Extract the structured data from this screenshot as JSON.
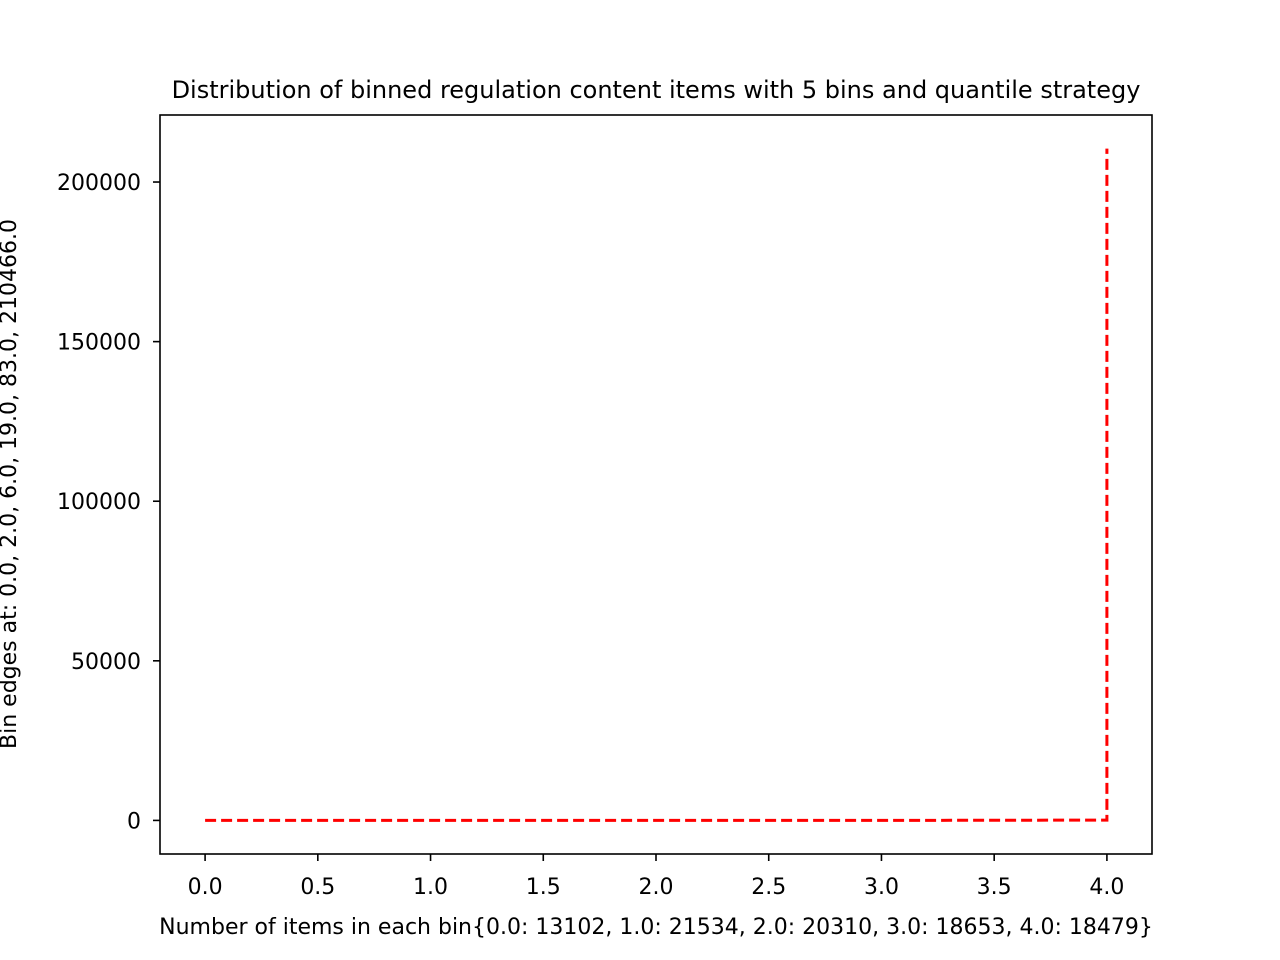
{
  "chart_data": {
    "type": "line",
    "title": "Distribution of binned regulation content items with 5 bins and quantile strategy",
    "xlabel": "Number of items in each bin{0.0: 13102, 1.0: 21534, 2.0: 20310, 3.0: 18653, 4.0: 18479}",
    "ylabel": "Bin edges at: 0.0, 2.0, 6.0, 19.0, 83.0, 210466.0",
    "x": [
      0,
      1,
      2,
      3,
      4
    ],
    "series": [
      {
        "values": [
          0,
          2,
          6,
          19,
          83
        ],
        "color": "#ff0000",
        "style": "dashed"
      }
    ],
    "extra_point": {
      "x": 4,
      "y": 210466
    },
    "xlim": [
      -0.2,
      4.2
    ],
    "ylim": [
      -10523,
      221000
    ],
    "xticks": [
      0.0,
      0.5,
      1.0,
      1.5,
      2.0,
      2.5,
      3.0,
      3.5,
      4.0
    ],
    "xtick_labels": [
      "0.0",
      "0.5",
      "1.0",
      "1.5",
      "2.0",
      "2.5",
      "3.0",
      "3.5",
      "4.0"
    ],
    "yticks": [
      0,
      50000,
      100000,
      150000,
      200000
    ],
    "ytick_labels": [
      "0",
      "50000",
      "100000",
      "150000",
      "200000"
    ],
    "grid": false,
    "legend": "none"
  }
}
